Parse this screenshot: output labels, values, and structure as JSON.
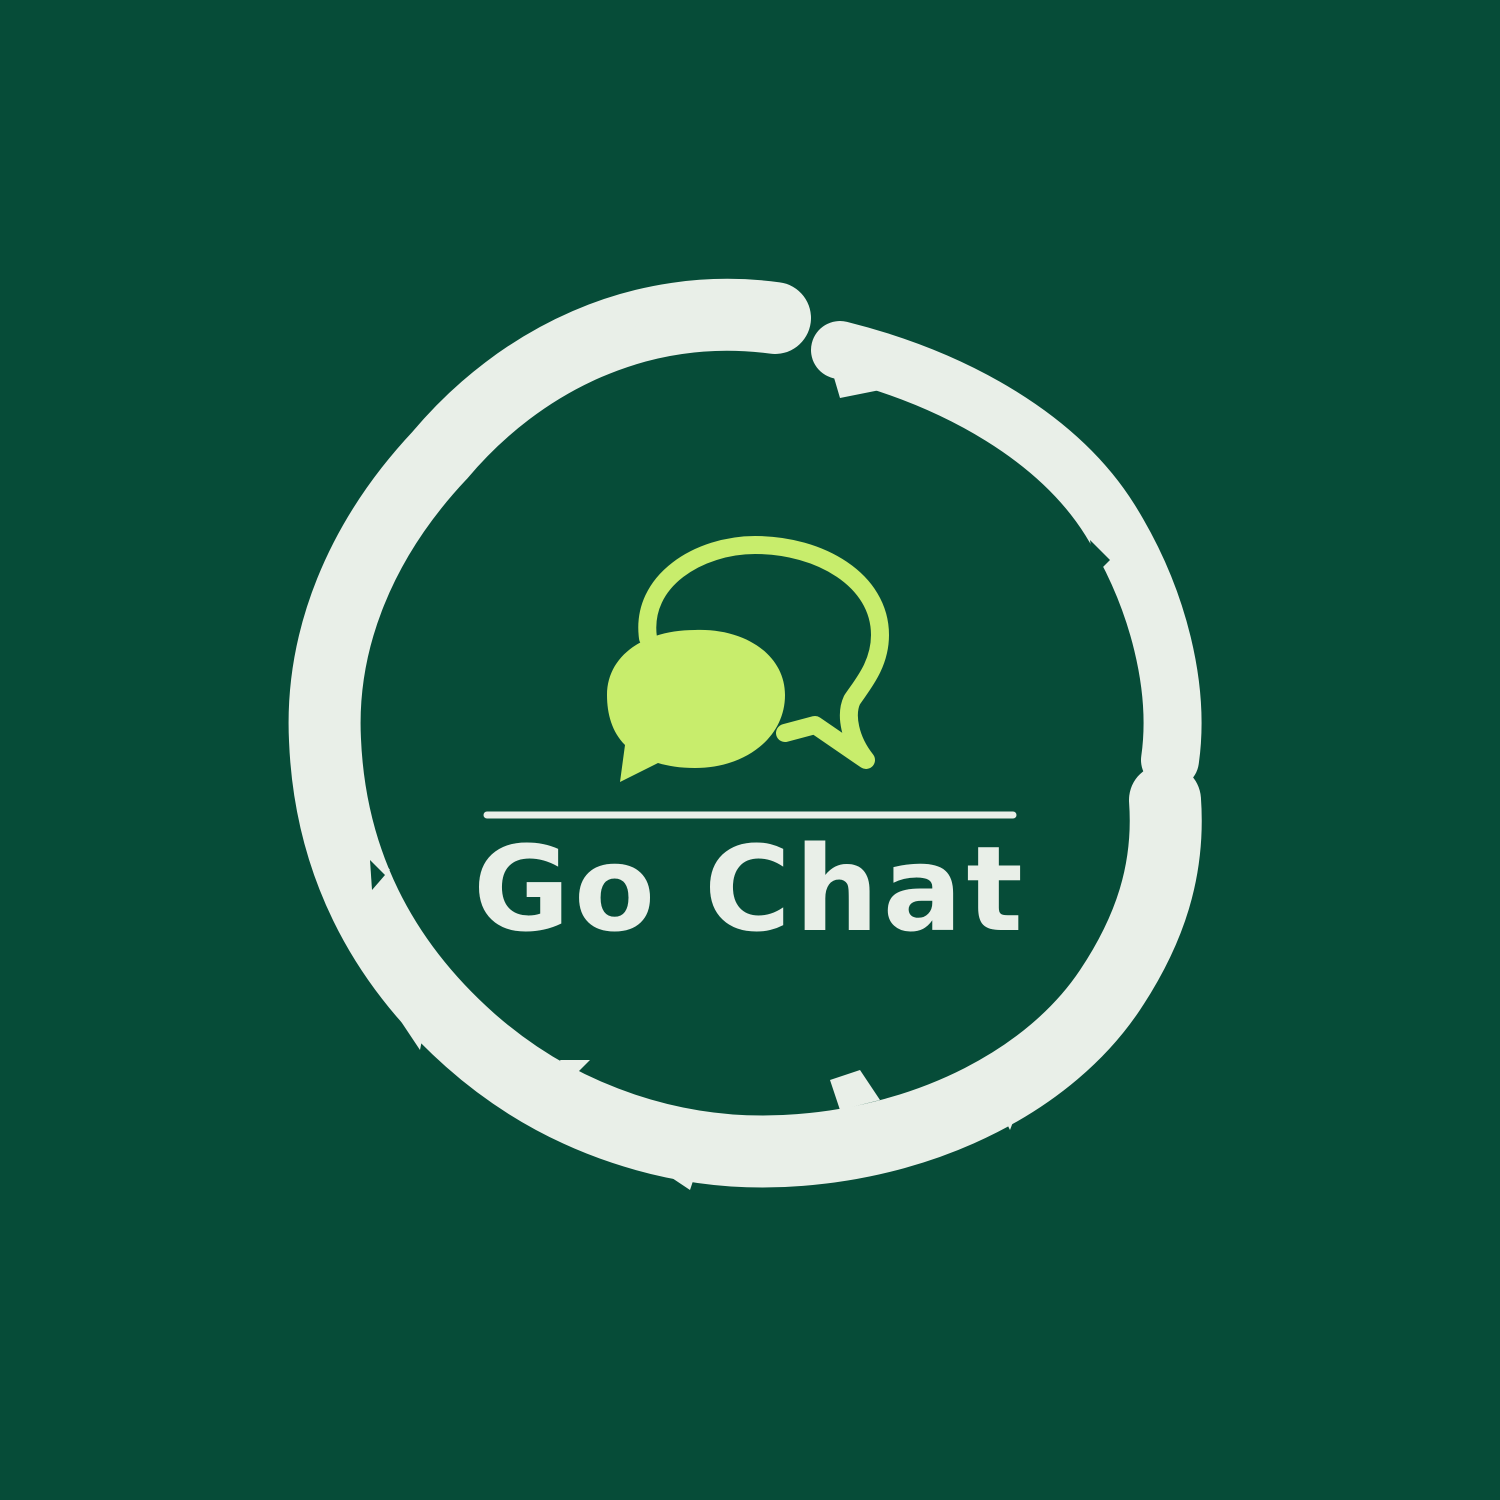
{
  "brand": {
    "name": "Go Chat"
  },
  "icons": {
    "ring": "brush-circle-icon",
    "bubbles": "chat-bubbles-icon"
  },
  "colors": {
    "background": "#064c38",
    "ring": "#e9efe8",
    "accent": "#c8ed6c",
    "text": "#e9efe8"
  }
}
